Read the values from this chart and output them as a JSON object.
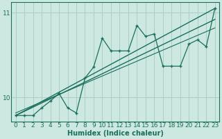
{
  "xlabel": "Humidex (Indice chaleur)",
  "bg_color": "#cce8e0",
  "grid_color": "#aacfc8",
  "line_color": "#1a6e5e",
  "xlim": [
    -0.5,
    23.5
  ],
  "ylim": [
    9.72,
    11.12
  ],
  "yticks": [
    10,
    11
  ],
  "xticks": [
    0,
    1,
    2,
    3,
    4,
    5,
    6,
    7,
    8,
    9,
    10,
    11,
    12,
    13,
    14,
    15,
    16,
    17,
    18,
    19,
    20,
    21,
    22,
    23
  ],
  "jagged_x": [
    0,
    1,
    2,
    3,
    4,
    5,
    6,
    7,
    8,
    9,
    10,
    11,
    12,
    13,
    14,
    15,
    16,
    17,
    18,
    19,
    20,
    21,
    22,
    23
  ],
  "jagged_y": [
    9.79,
    9.79,
    9.79,
    9.88,
    9.96,
    10.05,
    9.88,
    9.82,
    10.23,
    10.36,
    10.7,
    10.55,
    10.55,
    10.55,
    10.85,
    10.72,
    10.75,
    10.37,
    10.37,
    10.37,
    10.63,
    10.68,
    10.6,
    11.05
  ],
  "trend1_x": [
    0,
    23
  ],
  "trend1_y": [
    9.79,
    10.92
  ],
  "trend2_x": [
    0,
    23
  ],
  "trend2_y": [
    9.79,
    11.05
  ],
  "trend3_x": [
    0,
    23
  ],
  "trend3_y": [
    9.82,
    10.82
  ]
}
